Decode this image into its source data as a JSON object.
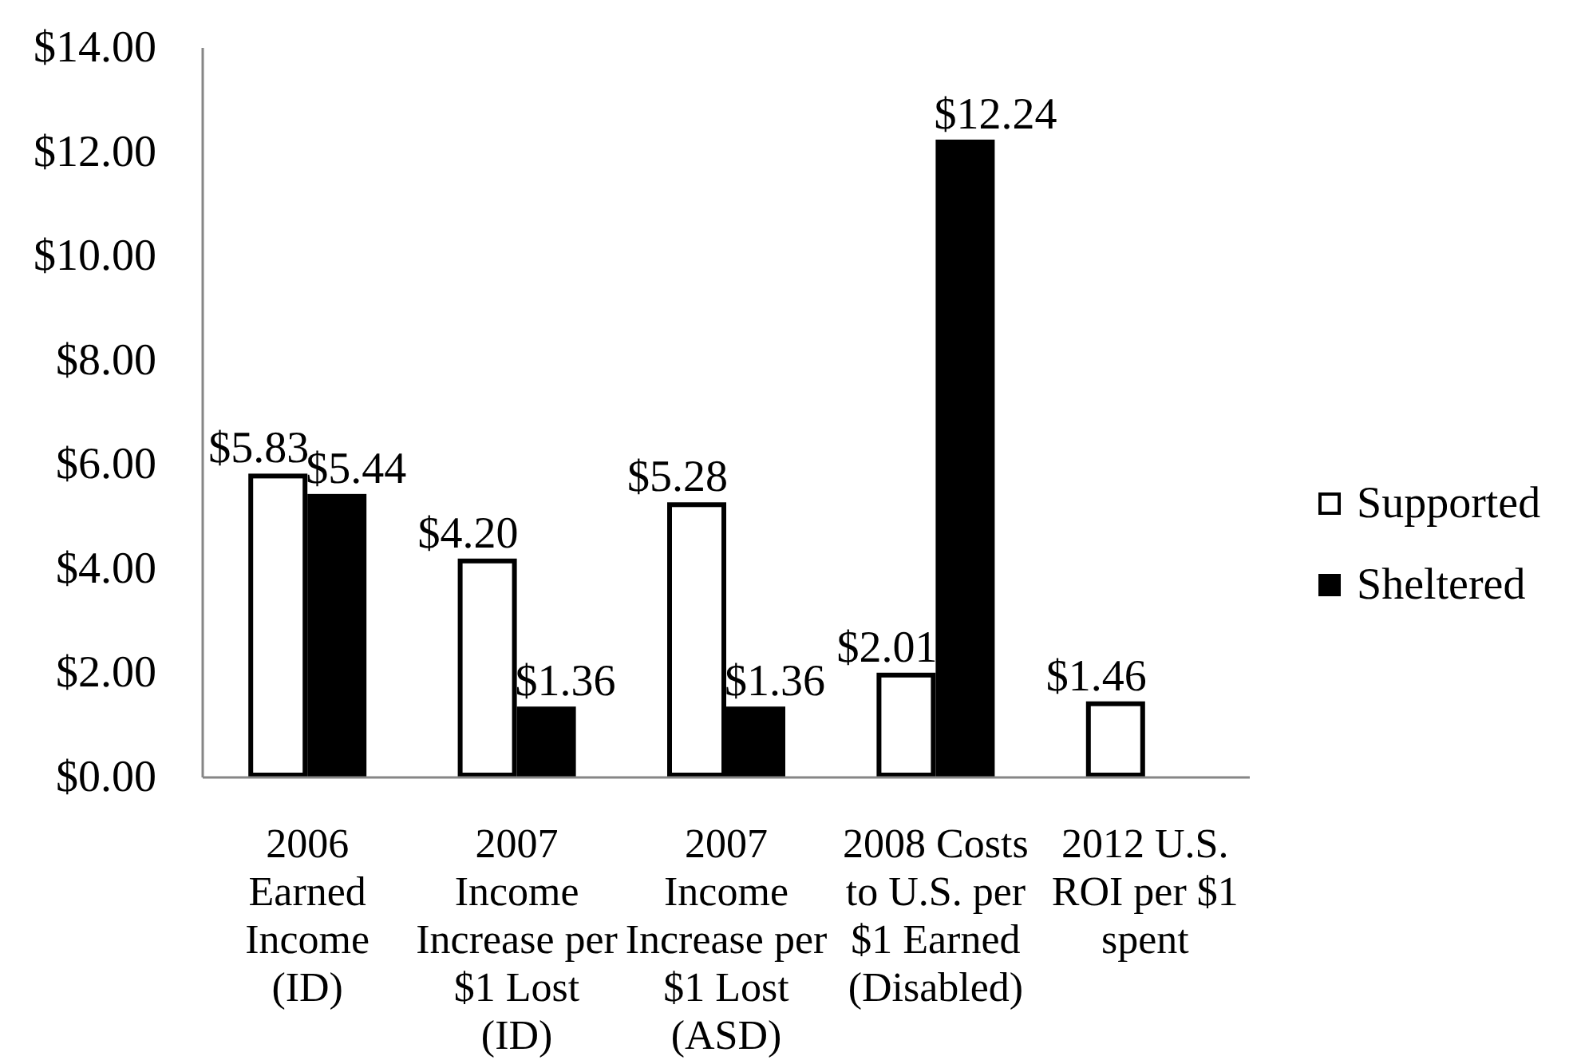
{
  "chart_data": {
    "type": "bar",
    "categories": [
      "2006 Earned Income (ID)",
      "2007 Income Increase per $1 Lost (ID)",
      "2007 Income Increase per $1 Lost (ASD)",
      "2008 Costs to U.S. per $1 Earned (Disabled)",
      "2012 U.S. ROI per $1 spent"
    ],
    "series": [
      {
        "name": "Supported",
        "color": "#ffffff",
        "values": [
          5.83,
          4.2,
          5.28,
          2.01,
          1.46
        ],
        "value_labels": [
          "$5.83",
          "$4.20",
          "$5.28",
          "$2.01",
          "$1.46"
        ]
      },
      {
        "name": "Sheltered",
        "color": "#000000",
        "values": [
          5.44,
          1.36,
          1.36,
          12.24,
          null
        ],
        "value_labels": [
          "$5.44",
          "$1.36",
          "$1.36",
          "$12.24",
          null
        ]
      }
    ],
    "ylim": [
      0,
      14
    ],
    "yticks": [
      {
        "value": 0,
        "label": "$0.00"
      },
      {
        "value": 2,
        "label": "$2.00"
      },
      {
        "value": 4,
        "label": "$4.00"
      },
      {
        "value": 6,
        "label": "$6.00"
      },
      {
        "value": 8,
        "label": "$8.00"
      },
      {
        "value": 10,
        "label": "$10.00"
      },
      {
        "value": 12,
        "label": "$12.00"
      },
      {
        "value": 14,
        "label": "$14.00"
      }
    ],
    "legend": "right"
  }
}
